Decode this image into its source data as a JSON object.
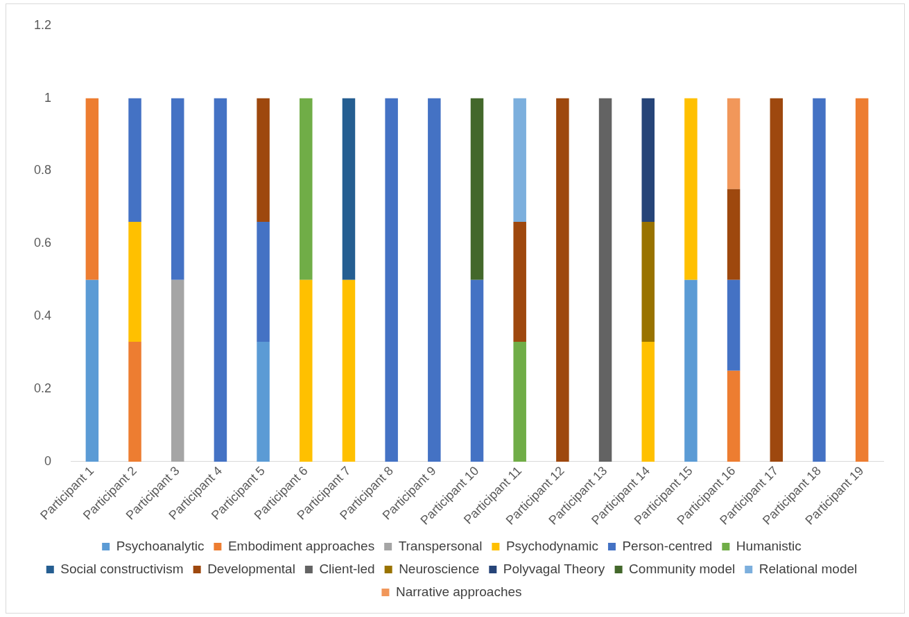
{
  "chart_data": {
    "type": "bar",
    "stacked": true,
    "legend": "bottom",
    "grid": false,
    "categories": [
      "Participant 1",
      "Participant 2",
      "Participant 3",
      "Participant 4",
      "Participant 5",
      "Participant 6",
      "Participant 7",
      "Participant 8",
      "Participant 9",
      "Participant 10",
      "Participant 11",
      "Participant 12",
      "Participant 13",
      "Participant 14",
      "Participant 15",
      "Participant 16",
      "Participant 17",
      "Participant 18",
      "Participant 19"
    ],
    "ylim": [
      0,
      1.2
    ],
    "yticks": [
      0,
      0.2,
      0.4,
      0.6,
      0.8,
      1,
      1.2
    ],
    "series": [
      {
        "name": "Psychoanalytic",
        "color": "#5b9bd5",
        "values": [
          0.5,
          null,
          null,
          null,
          0.33,
          null,
          null,
          null,
          null,
          null,
          null,
          null,
          null,
          null,
          0.5,
          null,
          null,
          null,
          null
        ]
      },
      {
        "name": "Embodiment approaches",
        "color": "#ed7d31",
        "values": [
          0.5,
          0.33,
          null,
          null,
          null,
          null,
          null,
          null,
          null,
          null,
          null,
          null,
          null,
          null,
          null,
          0.25,
          null,
          null,
          1
        ]
      },
      {
        "name": "Transpersonal",
        "color": "#a5a5a5",
        "values": [
          null,
          null,
          0.5,
          null,
          null,
          null,
          null,
          null,
          null,
          null,
          null,
          null,
          null,
          null,
          null,
          null,
          null,
          null,
          null
        ]
      },
      {
        "name": "Psychodynamic",
        "color": "#ffc000",
        "values": [
          null,
          0.33,
          null,
          null,
          null,
          0.5,
          0.5,
          null,
          null,
          null,
          null,
          null,
          null,
          0.33,
          0.5,
          null,
          null,
          null,
          null
        ]
      },
      {
        "name": "Person-centred",
        "color": "#4472c4",
        "values": [
          null,
          0.34,
          0.5,
          1,
          0.33,
          null,
          null,
          1,
          1,
          0.5,
          null,
          null,
          null,
          null,
          null,
          0.25,
          null,
          1,
          null
        ]
      },
      {
        "name": "Humanistic",
        "color": "#70ad47",
        "values": [
          null,
          null,
          null,
          null,
          null,
          0.5,
          null,
          null,
          null,
          null,
          0.33,
          null,
          null,
          null,
          null,
          null,
          null,
          null,
          null
        ]
      },
      {
        "name": "Social constructivism",
        "color": "#255e91",
        "values": [
          null,
          null,
          null,
          null,
          null,
          null,
          0.5,
          null,
          null,
          null,
          null,
          null,
          null,
          null,
          null,
          null,
          null,
          null,
          null
        ]
      },
      {
        "name": "Developmental",
        "color": "#9e480e",
        "values": [
          null,
          null,
          null,
          null,
          0.34,
          null,
          null,
          null,
          null,
          null,
          0.33,
          1,
          null,
          null,
          null,
          0.25,
          1,
          null,
          null
        ]
      },
      {
        "name": "Client-led",
        "color": "#636363",
        "values": [
          null,
          null,
          null,
          null,
          null,
          null,
          null,
          null,
          null,
          null,
          null,
          null,
          1,
          null,
          null,
          null,
          null,
          null,
          null
        ]
      },
      {
        "name": "Neuroscience",
        "color": "#997300",
        "values": [
          null,
          null,
          null,
          null,
          null,
          null,
          null,
          null,
          null,
          null,
          null,
          null,
          null,
          0.33,
          null,
          null,
          null,
          null,
          null
        ]
      },
      {
        "name": "Polyvagal Theory",
        "color": "#264478",
        "values": [
          null,
          null,
          null,
          null,
          null,
          null,
          null,
          null,
          null,
          null,
          null,
          null,
          null,
          0.34,
          null,
          null,
          null,
          null,
          null
        ]
      },
      {
        "name": "Community model",
        "color": "#43682b",
        "values": [
          null,
          null,
          null,
          null,
          null,
          null,
          null,
          null,
          null,
          0.5,
          null,
          null,
          null,
          null,
          null,
          null,
          null,
          null,
          null
        ]
      },
      {
        "name": "Relational model",
        "color": "#7cafdd",
        "values": [
          null,
          null,
          null,
          null,
          null,
          null,
          null,
          null,
          null,
          null,
          0.34,
          null,
          null,
          null,
          null,
          null,
          null,
          null,
          null
        ]
      },
      {
        "name": "Narrative approaches",
        "color": "#f1975a",
        "values": [
          null,
          null,
          null,
          null,
          null,
          null,
          null,
          null,
          null,
          null,
          null,
          null,
          null,
          null,
          null,
          0.25,
          null,
          null,
          null
        ]
      }
    ]
  }
}
